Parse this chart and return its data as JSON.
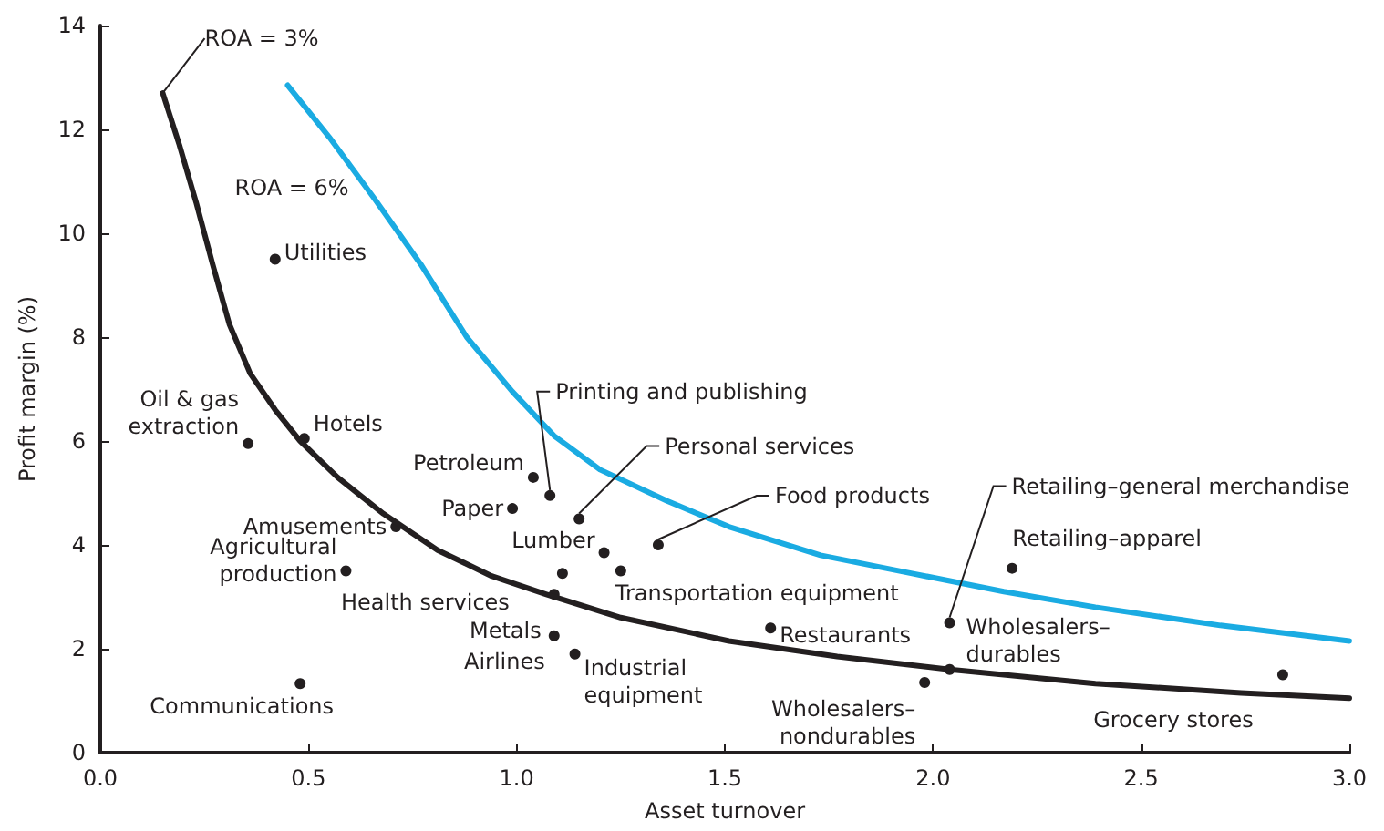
{
  "chart_data": {
    "type": "scatter",
    "xlabel": "Asset turnover",
    "ylabel": "Profit margin (%)",
    "xlim": [
      0,
      3
    ],
    "xticks": [
      {
        "value": 0,
        "label": "0.0"
      },
      {
        "value": 0.5,
        "label": "0.5"
      },
      {
        "value": 1,
        "label": "1.0"
      },
      {
        "value": 1.5,
        "label": "1.5"
      },
      {
        "value": 2,
        "label": "2.0"
      },
      {
        "value": 2.5,
        "label": "2.5"
      },
      {
        "value": 3,
        "label": "3.0"
      }
    ],
    "ylim": [
      0,
      14
    ],
    "yticks": [
      0,
      2,
      4,
      6,
      8,
      10,
      12,
      14
    ],
    "grid": false,
    "legend": false,
    "series": [
      {
        "name": "ROA = 3%",
        "type": "line",
        "marker": "none",
        "color": "#231f20",
        "line_style": "solid",
        "x": [
          0.15,
          0.19,
          0.23,
          0.27,
          0.31,
          0.36,
          0.42,
          0.48,
          0.57,
          0.68,
          0.81,
          0.94,
          1.07,
          1.25,
          1.51,
          1.77,
          2.04,
          2.39,
          2.74,
          3.0
        ],
        "values": [
          12.7,
          11.7,
          10.6,
          9.4,
          8.25,
          7.3,
          6.6,
          6.0,
          5.3,
          4.6,
          3.9,
          3.4,
          3.05,
          2.6,
          2.15,
          1.85,
          1.6,
          1.33,
          1.15,
          1.05
        ]
      },
      {
        "name": "ROA = 6%",
        "type": "line",
        "marker": "none",
        "color": "#1aabe2",
        "line_style": "solid",
        "x": [
          0.45,
          0.55,
          0.66,
          0.77,
          0.88,
          0.99,
          1.09,
          1.2,
          1.36,
          1.51,
          1.73,
          1.95,
          2.17,
          2.39,
          2.69,
          3.0
        ],
        "values": [
          12.85,
          11.85,
          10.65,
          9.4,
          8.0,
          6.95,
          6.1,
          5.45,
          4.85,
          4.35,
          3.8,
          3.45,
          3.1,
          2.8,
          2.45,
          2.15
        ]
      },
      {
        "marker": "circle",
        "color": "#231f20",
        "x": [
          0.42,
          0.355,
          0.49,
          0.71,
          0.59,
          0.48,
          1.04,
          0.99,
          1.08,
          1.15,
          1.21,
          1.34,
          1.11,
          1.25,
          1.09,
          1.09,
          1.14,
          1.61,
          2.04,
          2.19,
          2.04,
          1.98,
          2.84
        ],
        "values": [
          9.5,
          5.95,
          6.05,
          4.35,
          3.5,
          1.33,
          5.3,
          4.7,
          4.95,
          4.5,
          3.85,
          4.0,
          3.45,
          3.5,
          3.05,
          2.25,
          1.9,
          2.4,
          2.5,
          3.55,
          1.6,
          1.35,
          1.5
        ]
      }
    ],
    "annotations": [
      {
        "text": "Utilities",
        "x": 0.42,
        "y": 9.5
      },
      {
        "text": "Oil & gas\nextraction",
        "x": 0.355,
        "y": 5.95
      },
      {
        "text": "Hotels",
        "x": 0.49,
        "y": 6.05
      },
      {
        "text": "Amusements",
        "x": 0.71,
        "y": 4.35
      },
      {
        "text": "Agricultural\nproduction",
        "x": 0.59,
        "y": 3.5
      },
      {
        "text": "Communications",
        "x": 0.48,
        "y": 1.33
      },
      {
        "text": "Petroleum",
        "x": 1.04,
        "y": 5.3
      },
      {
        "text": "Paper",
        "x": 0.99,
        "y": 4.7
      },
      {
        "text": "Printing and publishing",
        "x": 1.08,
        "y": 4.95
      },
      {
        "text": "Personal services",
        "x": 1.15,
        "y": 4.5
      },
      {
        "text": "Lumber",
        "x": 1.21,
        "y": 3.85
      },
      {
        "text": "Food products",
        "x": 1.34,
        "y": 4.0
      },
      {
        "text": "Health services",
        "x": 1.11,
        "y": 3.45
      },
      {
        "text": "Transportation equipment",
        "x": 1.25,
        "y": 3.5
      },
      {
        "text": "Metals",
        "x": 1.09,
        "y": 3.05
      },
      {
        "text": "Airlines",
        "x": 1.09,
        "y": 2.25
      },
      {
        "text": "Industrial\nequipment",
        "x": 1.14,
        "y": 1.9
      },
      {
        "text": "Restaurants",
        "x": 1.61,
        "y": 2.4
      },
      {
        "text": "Retailing–general merchandise",
        "x": 2.04,
        "y": 2.5
      },
      {
        "text": "Retailing–apparel",
        "x": 2.19,
        "y": 3.55
      },
      {
        "text": "Wholesalers–\ndurables",
        "x": 2.04,
        "y": 1.6
      },
      {
        "text": "Wholesalers–\nnondurables",
        "x": 1.98,
        "y": 1.35
      },
      {
        "text": "Grocery stores",
        "x": 2.84,
        "y": 1.5
      }
    ]
  }
}
